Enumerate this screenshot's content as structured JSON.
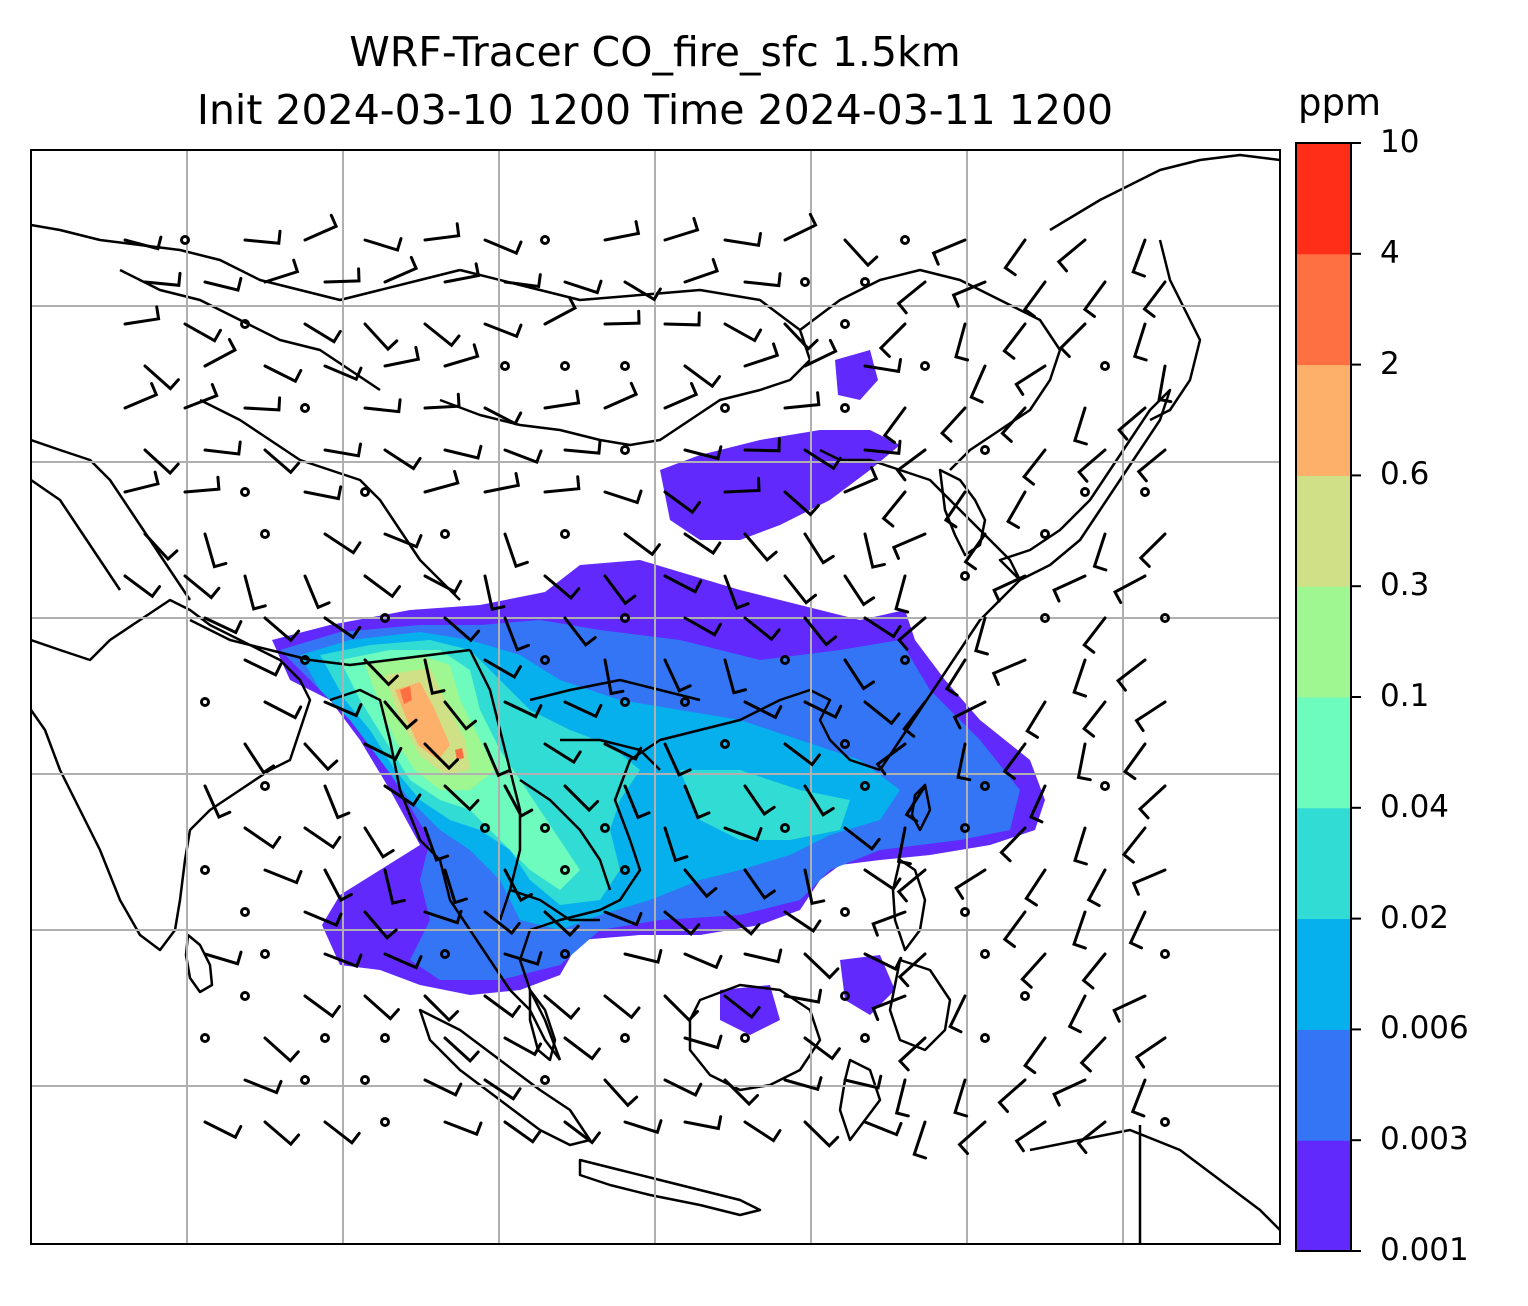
{
  "title": {
    "line1": "WRF-Tracer CO_fire_sfc 1.5km",
    "line2": "Init 2024-03-10 1200 Time 2024-03-11 1200"
  },
  "colorbar": {
    "unit": "ppm",
    "ticks": [
      "0.001",
      "0.003",
      "0.006",
      "0.02",
      "0.04",
      "0.1",
      "0.3",
      "0.6",
      "2",
      "4",
      "10"
    ],
    "colors": [
      "#6129fb",
      "#3375f5",
      "#06b0ed",
      "#30dcd3",
      "#6dfbbe",
      "#9ef790",
      "#cfe086",
      "#fdb06a",
      "#fe7042",
      "#ff2e19"
    ]
  },
  "map": {
    "grid": "on",
    "field": "CO_fire_sfc",
    "overlay": "wind barbs",
    "colors": {
      "coast": "#000000",
      "grid": "#b0b0b0",
      "barb": "#000000"
    }
  }
}
